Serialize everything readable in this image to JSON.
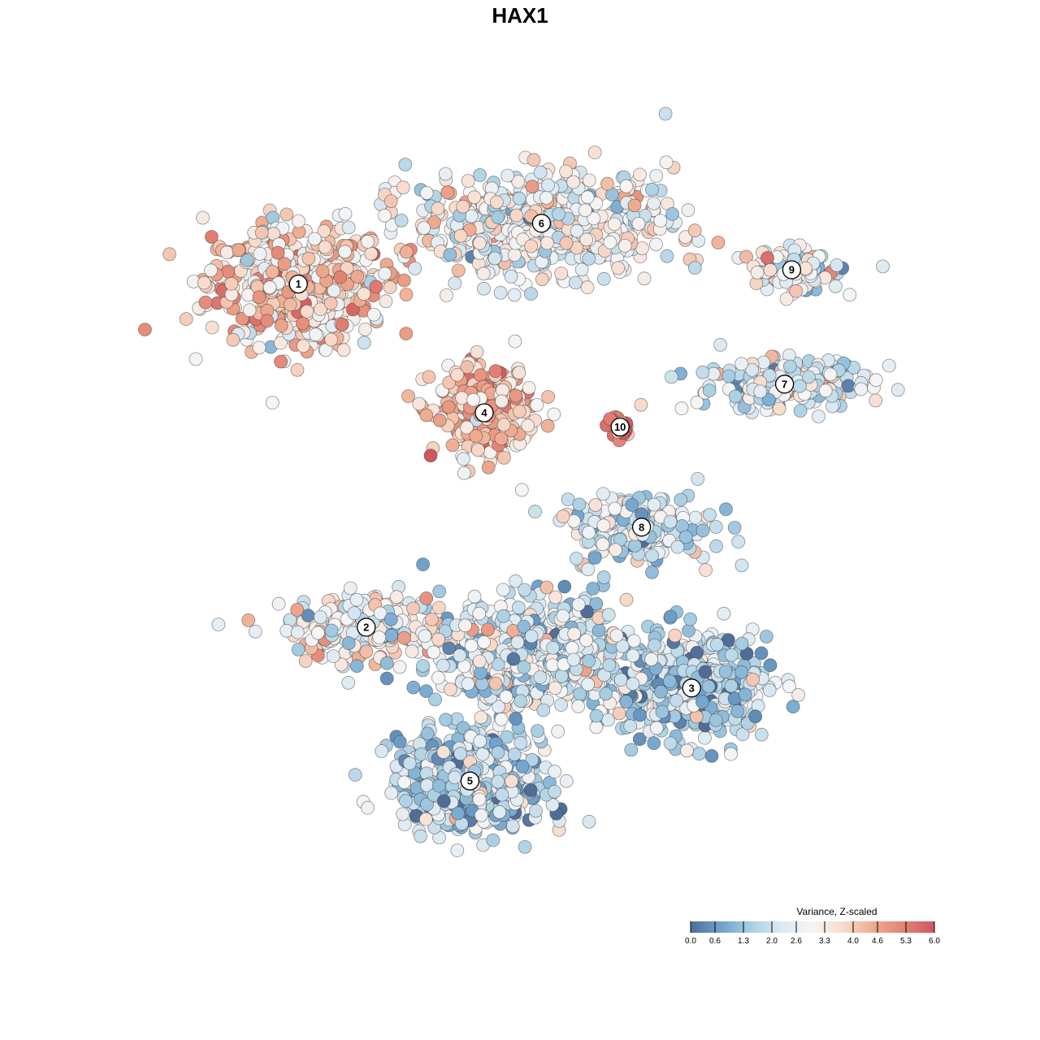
{
  "chart_data": {
    "type": "scatter",
    "title": "HAX1",
    "xlabel": "",
    "ylabel": "",
    "grid": false,
    "legend": {
      "title": "Variance, Z-scaled",
      "placement": "bottom-right",
      "ticks": [
        "0.0",
        "0.6",
        "1.3",
        "2.0",
        "2.6",
        "3.3",
        "4.0",
        "4.6",
        "5.3",
        "6.0"
      ],
      "range": [
        0.0,
        6.0
      ],
      "colors": [
        "#4f6d97",
        "#6fa3cd",
        "#a9cfe3",
        "#dce9f2",
        "#f5f5f5",
        "#f8dccd",
        "#eeaa8e",
        "#e38274",
        "#d0565f"
      ]
    },
    "clusters": [
      {
        "id": "1",
        "x": -6.2,
        "y": 6.6,
        "sd_x": 2.3,
        "sd_y": 1.5,
        "n": 520,
        "mean_value": 3.7
      },
      {
        "id": "2",
        "x": -4.3,
        "y": -3.0,
        "sd_x": 2.0,
        "sd_y": 0.9,
        "n": 240,
        "mean_value": 3.0
      },
      {
        "id": "3",
        "x": 4.8,
        "y": -4.7,
        "sd_x": 1.9,
        "sd_y": 1.3,
        "n": 480,
        "mean_value": 1.6
      },
      {
        "id": "4",
        "x": -1.0,
        "y": 3.0,
        "sd_x": 1.3,
        "sd_y": 1.1,
        "n": 280,
        "mean_value": 4.0
      },
      {
        "id": "5",
        "x": -1.4,
        "y": -7.3,
        "sd_x": 1.9,
        "sd_y": 1.2,
        "n": 560,
        "mean_value": 1.8
      },
      {
        "id": "6",
        "x": 0.6,
        "y": 8.3,
        "sd_x": 3.3,
        "sd_y": 1.3,
        "n": 620,
        "mean_value": 2.8
      },
      {
        "id": "7",
        "x": 7.4,
        "y": 3.8,
        "sd_x": 2.2,
        "sd_y": 0.7,
        "n": 200,
        "mean_value": 2.5
      },
      {
        "id": "8",
        "x": 3.4,
        "y": -0.2,
        "sd_x": 1.8,
        "sd_y": 0.9,
        "n": 200,
        "mean_value": 2.2
      },
      {
        "id": "9",
        "x": 7.6,
        "y": 7.0,
        "sd_x": 1.3,
        "sd_y": 0.5,
        "n": 120,
        "mean_value": 2.6
      },
      {
        "id": "10",
        "x": 2.8,
        "y": 2.6,
        "sd_x": 0.3,
        "sd_y": 0.3,
        "n": 30,
        "mean_value": 5.3
      },
      {
        "id": "",
        "x": 0.4,
        "y": -3.7,
        "sd_x": 2.4,
        "sd_y": 1.4,
        "n": 620,
        "mean_value": 2.3
      }
    ]
  }
}
